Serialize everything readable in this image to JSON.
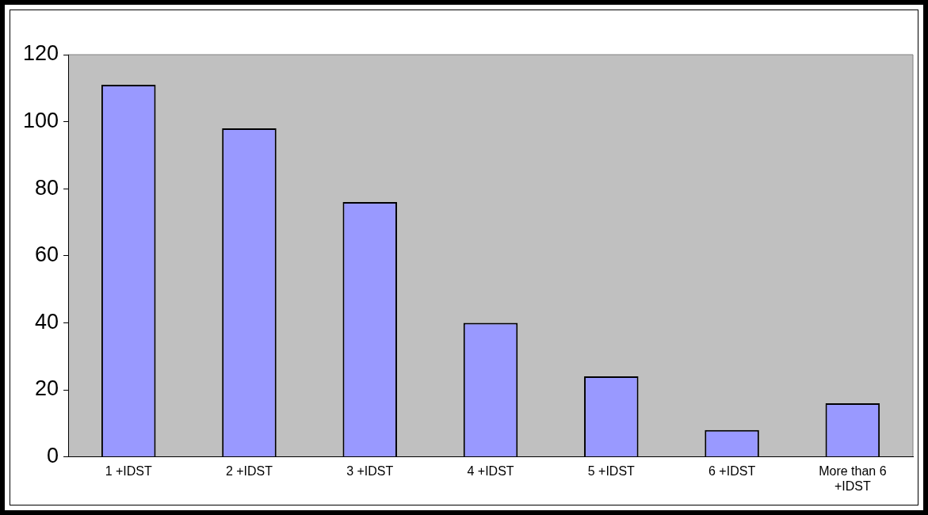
{
  "chart_data": {
    "type": "bar",
    "categories": [
      "1 +IDST",
      "2 +IDST",
      "3 +IDST",
      "4 +IDST",
      "5 +IDST",
      "6 +IDST",
      "More than 6 +IDST"
    ],
    "values": [
      111,
      98,
      76,
      40,
      24,
      8,
      16
    ],
    "color": "#9999ff",
    "ylim": [
      0,
      120
    ],
    "yticks": [
      0,
      20,
      40,
      60,
      80,
      100,
      120
    ],
    "grid": false,
    "legend": false
  }
}
